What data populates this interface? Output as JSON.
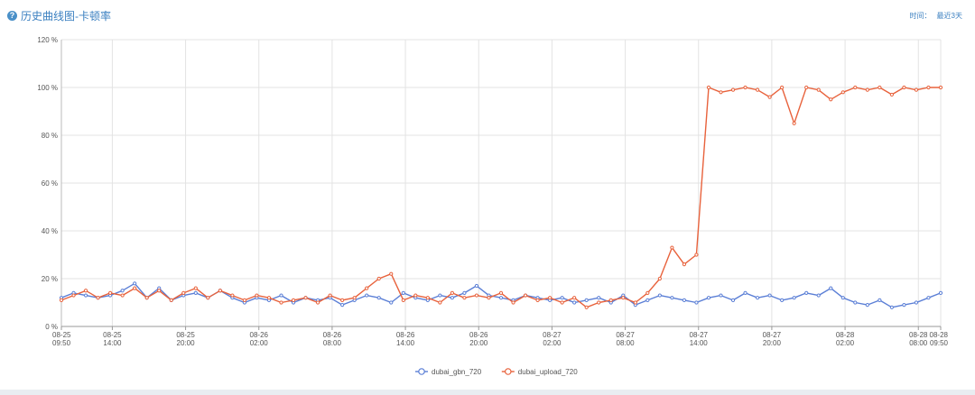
{
  "header": {
    "help_icon": "question-circle-icon",
    "title": "历史曲线图-卡顿率",
    "time_label": "时间：",
    "time_value": "最近3天"
  },
  "chart_data": {
    "type": "line",
    "title": "历史曲线图-卡顿率",
    "xlabel": "",
    "ylabel": "",
    "ylim": [
      0,
      120
    ],
    "yticks": [
      0,
      20,
      40,
      60,
      80,
      100,
      120
    ],
    "ytick_labels": [
      "0 %",
      "20 %",
      "40 %",
      "60 %",
      "80 %",
      "100 %",
      "120 %"
    ],
    "xlim": [
      0,
      72
    ],
    "xticks": [
      {
        "x": 0,
        "date": "08-25",
        "time": "09:50"
      },
      {
        "x": 4.17,
        "date": "08-25",
        "time": "14:00"
      },
      {
        "x": 10.17,
        "date": "08-25",
        "time": "20:00"
      },
      {
        "x": 16.17,
        "date": "08-26",
        "time": "02:00"
      },
      {
        "x": 22.17,
        "date": "08-26",
        "time": "08:00"
      },
      {
        "x": 28.17,
        "date": "08-26",
        "time": "14:00"
      },
      {
        "x": 34.17,
        "date": "08-26",
        "time": "20:00"
      },
      {
        "x": 40.17,
        "date": "08-27",
        "time": "02:00"
      },
      {
        "x": 46.17,
        "date": "08-27",
        "time": "08:00"
      },
      {
        "x": 52.17,
        "date": "08-27",
        "time": "14:00"
      },
      {
        "x": 58.17,
        "date": "08-27",
        "time": "20:00"
      },
      {
        "x": 64.17,
        "date": "08-28",
        "time": "02:00"
      },
      {
        "x": 70.17,
        "date": "08-28",
        "time": "08:00"
      },
      {
        "x": 72,
        "date": "08-28",
        "time": "09:50"
      }
    ],
    "grid": true,
    "legend_position": "bottom-center",
    "series": [
      {
        "name": "dubai_gbn_720",
        "color": "#5b7fd6",
        "x": [
          0,
          1,
          2,
          3,
          4,
          5,
          6,
          7,
          8,
          9,
          10,
          11,
          12,
          13,
          14,
          15,
          16,
          17,
          18,
          19,
          20,
          21,
          22,
          23,
          24,
          25,
          26,
          27,
          28,
          29,
          30,
          31,
          32,
          33,
          34,
          35,
          36,
          37,
          38,
          39,
          40,
          41,
          42,
          43,
          44,
          45,
          46,
          47,
          48,
          49,
          50,
          51,
          52,
          53,
          54,
          55,
          56,
          57,
          58,
          59,
          60,
          61,
          62,
          63,
          64,
          65,
          66,
          67,
          68,
          69,
          70,
          71,
          72
        ],
        "values": [
          12,
          14,
          13,
          12,
          13,
          15,
          18,
          12,
          16,
          11,
          13,
          14,
          12,
          15,
          12,
          10,
          12,
          11,
          13,
          10,
          12,
          11,
          12,
          9,
          11,
          13,
          12,
          10,
          14,
          12,
          11,
          13,
          12,
          14,
          17,
          13,
          12,
          11,
          13,
          12,
          11,
          12,
          10,
          11,
          12,
          10,
          13,
          9,
          11,
          13,
          12,
          11,
          10,
          12,
          13,
          11,
          14,
          12,
          13,
          11,
          12,
          14,
          13,
          16,
          12,
          10,
          9,
          11,
          8,
          9,
          10,
          12,
          14
        ]
      },
      {
        "name": "dubai_upload_720",
        "color": "#e8623c",
        "x": [
          0,
          1,
          2,
          3,
          4,
          5,
          6,
          7,
          8,
          9,
          10,
          11,
          12,
          13,
          14,
          15,
          16,
          17,
          18,
          19,
          20,
          21,
          22,
          23,
          24,
          25,
          26,
          27,
          28,
          29,
          30,
          31,
          32,
          33,
          34,
          35,
          36,
          37,
          38,
          39,
          40,
          41,
          42,
          43,
          44,
          45,
          46,
          47,
          48,
          49,
          50,
          51,
          52,
          53,
          54,
          55,
          56,
          57,
          58,
          59,
          60,
          61,
          62,
          63,
          64,
          65,
          66,
          67,
          68,
          69,
          70,
          71,
          72
        ],
        "values": [
          11,
          13,
          15,
          12,
          14,
          13,
          16,
          12,
          15,
          11,
          14,
          16,
          12,
          15,
          13,
          11,
          13,
          12,
          10,
          11,
          12,
          10,
          13,
          11,
          12,
          16,
          20,
          22,
          11,
          13,
          12,
          10,
          14,
          12,
          13,
          12,
          14,
          10,
          13,
          11,
          12,
          10,
          12,
          8,
          10,
          11,
          12,
          10,
          14,
          20,
          33,
          26,
          30,
          100,
          98,
          99,
          100,
          99,
          96,
          100,
          85,
          100,
          99,
          95,
          98,
          100,
          99,
          100,
          97,
          100,
          99,
          100,
          100
        ]
      }
    ]
  }
}
